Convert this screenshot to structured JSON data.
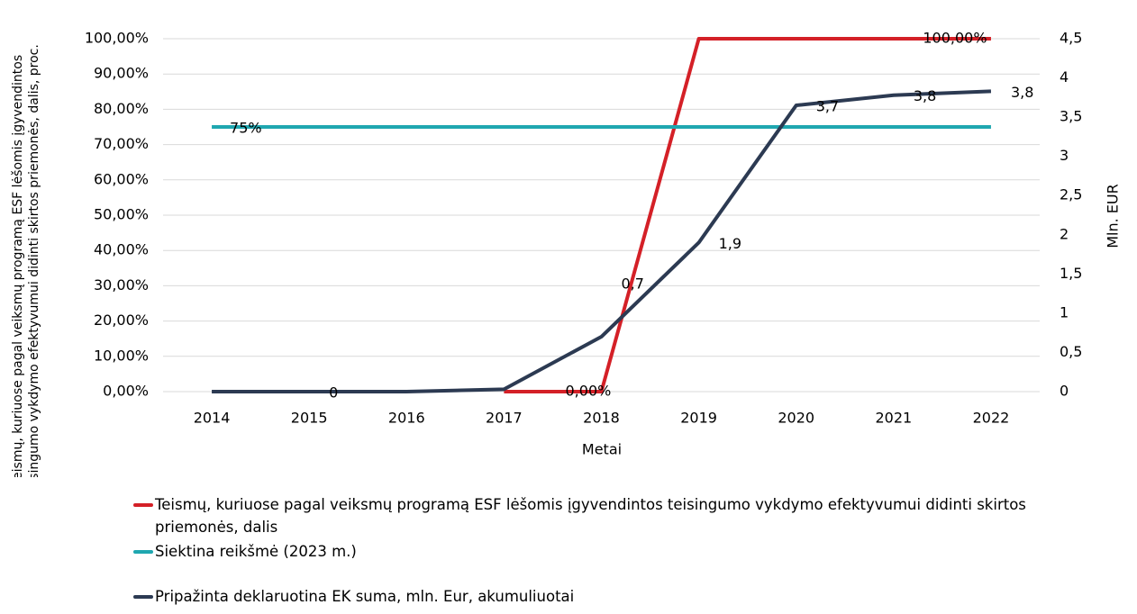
{
  "chart_data": {
    "type": "line",
    "x_label": "Metai",
    "y_label": [
      "Teismų, kuriuose pagal veiksmų programą ESF lėšomis įgyvendintos",
      "teisingumo vykdymo efektyvumui didinti skirtos priemonės, dalis, proc."
    ],
    "y2_label": "Mln. EUR",
    "categories": [
      "2014",
      "2015",
      "2016",
      "2017",
      "2018",
      "2019",
      "2020",
      "2021",
      "2022"
    ],
    "ylim": [
      0,
      100
    ],
    "yticks": [
      {
        "value": 0,
        "label": "0,00%"
      },
      {
        "value": 10,
        "label": "10,00%"
      },
      {
        "value": 20,
        "label": "20,00%"
      },
      {
        "value": 30,
        "label": "30,00%"
      },
      {
        "value": 40,
        "label": "40,00%"
      },
      {
        "value": 50,
        "label": "50,00%"
      },
      {
        "value": 60,
        "label": "60,00%"
      },
      {
        "value": 70,
        "label": "70,00%"
      },
      {
        "value": 80,
        "label": "80,00%"
      },
      {
        "value": 90,
        "label": "90,00%"
      },
      {
        "value": 100,
        "label": "100,00%"
      }
    ],
    "y2lim": [
      0,
      4.5
    ],
    "y2ticks": [
      0,
      {
        "value": 0.5,
        "label": "0,5"
      },
      1,
      {
        "value": 1.5,
        "label": "1,5"
      },
      2,
      {
        "value": 2.5,
        "label": "2,5"
      },
      3,
      {
        "value": 3.5,
        "label": "3,5"
      },
      4,
      {
        "value": 4.5,
        "label": "4,5"
      }
    ],
    "grid": true,
    "legend": "bottom",
    "series": [
      {
        "name": "Teismų, kuriuose pagal veiksmų programą ESF lėšomis įgyvendintos teisingumo vykdymo efektyvumui didinti skirtos priemonės, dalis",
        "color": "#d42027",
        "values": [
          null,
          null,
          null,
          0,
          0,
          100,
          100,
          100,
          100
        ],
        "value_labels": [
          null,
          null,
          null,
          null,
          "0,00%",
          null,
          null,
          null,
          "100,00%"
        ]
      },
      {
        "name": "Siektina reikšmė (2023 m.)",
        "color": "#1fa7b0",
        "values": [
          75,
          75,
          75,
          75,
          75,
          75,
          75,
          75,
          75
        ],
        "value_labels": [
          "75%",
          null,
          null,
          null,
          null,
          null,
          null,
          null,
          null
        ]
      },
      {
        "name": "Pripažinta deklaruotina EK suma, mln. Eur, akumuliuotai",
        "color": "#2c3a52",
        "axis": "y2",
        "values": [
          0,
          0,
          0,
          0.03,
          0.7,
          1.9,
          3.65,
          3.78,
          3.83
        ],
        "value_labels": [
          null,
          "0",
          null,
          null,
          "0,7",
          "1,9",
          "3,7",
          "3,8",
          "3,8"
        ]
      }
    ]
  }
}
